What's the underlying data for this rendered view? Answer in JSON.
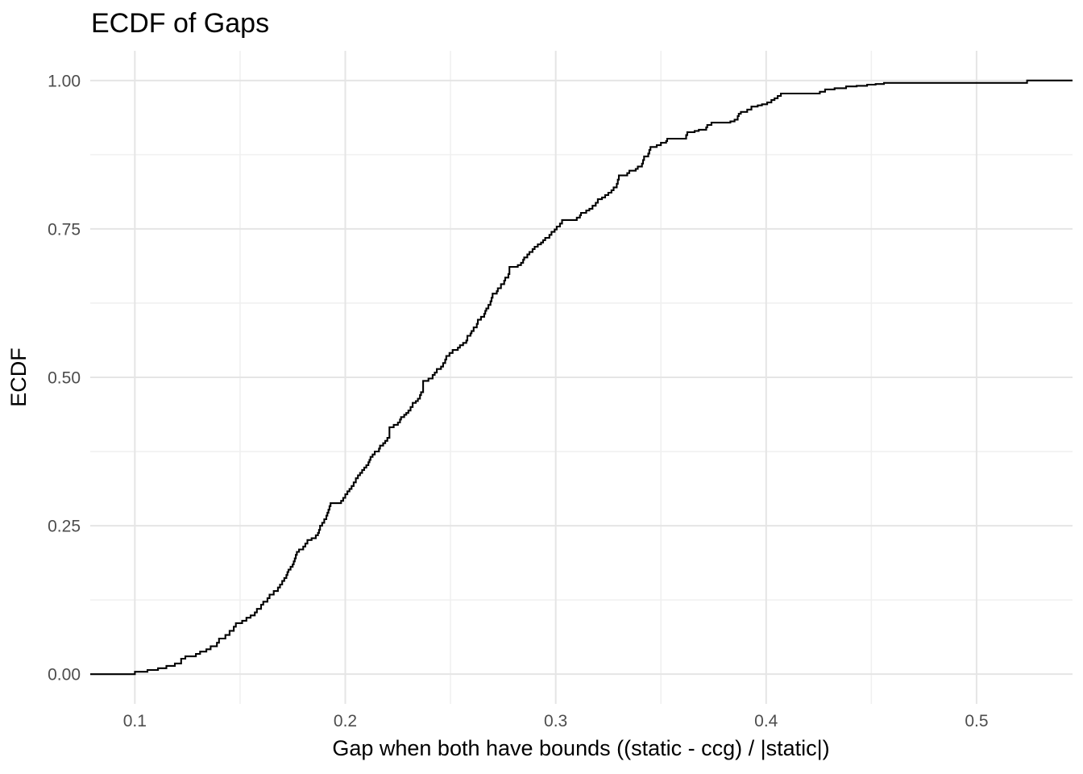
{
  "title": "ECDF of Gaps",
  "chart_data": {
    "type": "line",
    "interpolation": "step-after",
    "title": "ECDF of Gaps",
    "xlabel": "Gap when both have bounds ((static - ccg) / |static|)",
    "ylabel": "ECDF",
    "legend_position": "none",
    "grid": true,
    "x_domain": [
      0.0788,
      0.5456
    ],
    "y_domain": [
      -0.05,
      1.05
    ],
    "x_ticks": {
      "major": [
        0.1,
        0.2,
        0.3,
        0.4,
        0.5
      ],
      "labels": [
        "0.1",
        "0.2",
        "0.3",
        "0.4",
        "0.5"
      ],
      "minor": [
        0.15,
        0.25,
        0.35,
        0.45
      ]
    },
    "y_ticks": {
      "major": [
        0.0,
        0.25,
        0.5,
        0.75,
        1.0
      ],
      "labels": [
        "0.00",
        "0.25",
        "0.50",
        "0.75",
        "1.00"
      ],
      "minor": [
        0.125,
        0.375,
        0.625,
        0.875
      ]
    },
    "colors": {
      "line": "#000000",
      "grid_major": "#e5e5e5",
      "grid_minor": "#f0f0f0",
      "tick_text": "#4d4d4d",
      "title_text": "#000000",
      "background": "#ffffff"
    },
    "series": [
      {
        "name": "ecdf",
        "points": [
          [
            0.0788,
            0.0
          ],
          [
            0.1,
            0.004
          ],
          [
            0.106,
            0.007
          ],
          [
            0.111,
            0.01
          ],
          [
            0.115,
            0.014
          ],
          [
            0.119,
            0.018
          ],
          [
            0.122,
            0.026
          ],
          [
            0.124,
            0.03
          ],
          [
            0.129,
            0.034
          ],
          [
            0.131,
            0.038
          ],
          [
            0.134,
            0.042
          ],
          [
            0.136,
            0.047
          ],
          [
            0.139,
            0.053
          ],
          [
            0.14,
            0.06
          ],
          [
            0.143,
            0.066
          ],
          [
            0.145,
            0.073
          ],
          [
            0.147,
            0.08
          ],
          [
            0.148,
            0.086
          ],
          [
            0.151,
            0.09
          ],
          [
            0.153,
            0.095
          ],
          [
            0.155,
            0.099
          ],
          [
            0.157,
            0.104
          ],
          [
            0.158,
            0.11
          ],
          [
            0.16,
            0.117
          ],
          [
            0.161,
            0.122
          ],
          [
            0.163,
            0.128
          ],
          [
            0.164,
            0.134
          ],
          [
            0.166,
            0.14
          ],
          [
            0.168,
            0.146
          ],
          [
            0.169,
            0.151
          ],
          [
            0.17,
            0.157
          ],
          [
            0.171,
            0.162
          ],
          [
            0.172,
            0.167
          ],
          [
            0.1725,
            0.172
          ],
          [
            0.173,
            0.176
          ],
          [
            0.174,
            0.181
          ],
          [
            0.175,
            0.185
          ],
          [
            0.1755,
            0.19
          ],
          [
            0.176,
            0.195
          ],
          [
            0.1765,
            0.201
          ],
          [
            0.177,
            0.206
          ],
          [
            0.178,
            0.21
          ],
          [
            0.18,
            0.215
          ],
          [
            0.181,
            0.22
          ],
          [
            0.182,
            0.226
          ],
          [
            0.184,
            0.229
          ],
          [
            0.186,
            0.234
          ],
          [
            0.187,
            0.238
          ],
          [
            0.1875,
            0.243
          ],
          [
            0.188,
            0.25
          ],
          [
            0.189,
            0.255
          ],
          [
            0.19,
            0.261
          ],
          [
            0.191,
            0.267
          ],
          [
            0.1915,
            0.272
          ],
          [
            0.192,
            0.277
          ],
          [
            0.1925,
            0.283
          ],
          [
            0.193,
            0.288
          ],
          [
            0.198,
            0.292
          ],
          [
            0.199,
            0.297
          ],
          [
            0.2,
            0.303
          ],
          [
            0.201,
            0.308
          ],
          [
            0.202,
            0.312
          ],
          [
            0.203,
            0.317
          ],
          [
            0.204,
            0.323
          ],
          [
            0.205,
            0.33
          ],
          [
            0.206,
            0.335
          ],
          [
            0.207,
            0.339
          ],
          [
            0.208,
            0.344
          ],
          [
            0.209,
            0.348
          ],
          [
            0.21,
            0.352
          ],
          [
            0.211,
            0.357
          ],
          [
            0.2115,
            0.361
          ],
          [
            0.212,
            0.366
          ],
          [
            0.213,
            0.37
          ],
          [
            0.214,
            0.375
          ],
          [
            0.216,
            0.38
          ],
          [
            0.2165,
            0.385
          ],
          [
            0.218,
            0.389
          ],
          [
            0.219,
            0.393
          ],
          [
            0.22,
            0.398
          ],
          [
            0.221,
            0.416
          ],
          [
            0.223,
            0.42
          ],
          [
            0.225,
            0.424
          ],
          [
            0.226,
            0.429
          ],
          [
            0.2265,
            0.433
          ],
          [
            0.228,
            0.437
          ],
          [
            0.229,
            0.44
          ],
          [
            0.23,
            0.444
          ],
          [
            0.231,
            0.45
          ],
          [
            0.232,
            0.457
          ],
          [
            0.2335,
            0.46
          ],
          [
            0.2345,
            0.464
          ],
          [
            0.2355,
            0.47
          ],
          [
            0.236,
            0.475
          ],
          [
            0.237,
            0.494
          ],
          [
            0.2395,
            0.498
          ],
          [
            0.2415,
            0.504
          ],
          [
            0.2425,
            0.508
          ],
          [
            0.2435,
            0.514
          ],
          [
            0.2455,
            0.518
          ],
          [
            0.2465,
            0.524
          ],
          [
            0.2475,
            0.53
          ],
          [
            0.248,
            0.536
          ],
          [
            0.2495,
            0.541
          ],
          [
            0.251,
            0.546
          ],
          [
            0.2535,
            0.55
          ],
          [
            0.2545,
            0.554
          ],
          [
            0.256,
            0.558
          ],
          [
            0.2575,
            0.562
          ],
          [
            0.258,
            0.57
          ],
          [
            0.2595,
            0.574
          ],
          [
            0.26,
            0.578
          ],
          [
            0.261,
            0.584
          ],
          [
            0.2625,
            0.59
          ],
          [
            0.263,
            0.597
          ],
          [
            0.2645,
            0.602
          ],
          [
            0.266,
            0.607
          ],
          [
            0.2665,
            0.612
          ],
          [
            0.267,
            0.616
          ],
          [
            0.268,
            0.622
          ],
          [
            0.269,
            0.628
          ],
          [
            0.2695,
            0.634
          ],
          [
            0.27,
            0.641
          ],
          [
            0.272,
            0.645
          ],
          [
            0.2725,
            0.65
          ],
          [
            0.274,
            0.657
          ],
          [
            0.2755,
            0.663
          ],
          [
            0.276,
            0.668
          ],
          [
            0.2775,
            0.674
          ],
          [
            0.278,
            0.686
          ],
          [
            0.282,
            0.689
          ],
          [
            0.2835,
            0.693
          ],
          [
            0.2845,
            0.698
          ],
          [
            0.285,
            0.702
          ],
          [
            0.2865,
            0.707
          ],
          [
            0.2875,
            0.711
          ],
          [
            0.289,
            0.716
          ],
          [
            0.29,
            0.72
          ],
          [
            0.2915,
            0.724
          ],
          [
            0.293,
            0.727
          ],
          [
            0.294,
            0.731
          ],
          [
            0.295,
            0.735
          ],
          [
            0.297,
            0.74
          ],
          [
            0.298,
            0.745
          ],
          [
            0.2995,
            0.749
          ],
          [
            0.3005,
            0.754
          ],
          [
            0.302,
            0.759
          ],
          [
            0.303,
            0.765
          ],
          [
            0.31,
            0.769
          ],
          [
            0.3115,
            0.773
          ],
          [
            0.312,
            0.777
          ],
          [
            0.3145,
            0.781
          ],
          [
            0.316,
            0.784
          ],
          [
            0.3175,
            0.789
          ],
          [
            0.319,
            0.794
          ],
          [
            0.32,
            0.8
          ],
          [
            0.322,
            0.803
          ],
          [
            0.3235,
            0.807
          ],
          [
            0.325,
            0.811
          ],
          [
            0.3265,
            0.815
          ],
          [
            0.3275,
            0.82
          ],
          [
            0.329,
            0.826
          ],
          [
            0.3295,
            0.833
          ],
          [
            0.33,
            0.84
          ],
          [
            0.334,
            0.844
          ],
          [
            0.335,
            0.848
          ],
          [
            0.338,
            0.851
          ],
          [
            0.339,
            0.855
          ],
          [
            0.341,
            0.86
          ],
          [
            0.3415,
            0.866
          ],
          [
            0.342,
            0.872
          ],
          [
            0.344,
            0.877
          ],
          [
            0.3445,
            0.883
          ],
          [
            0.345,
            0.888
          ],
          [
            0.348,
            0.891
          ],
          [
            0.35,
            0.895
          ],
          [
            0.3525,
            0.898
          ],
          [
            0.353,
            0.902
          ],
          [
            0.362,
            0.908
          ],
          [
            0.3625,
            0.913
          ],
          [
            0.366,
            0.915
          ],
          [
            0.368,
            0.917
          ],
          [
            0.3715,
            0.921
          ],
          [
            0.372,
            0.925
          ],
          [
            0.374,
            0.929
          ],
          [
            0.383,
            0.931
          ],
          [
            0.385,
            0.934
          ],
          [
            0.3865,
            0.94
          ],
          [
            0.387,
            0.944
          ],
          [
            0.388,
            0.947
          ],
          [
            0.391,
            0.951
          ],
          [
            0.393,
            0.956
          ],
          [
            0.396,
            0.958
          ],
          [
            0.398,
            0.96
          ],
          [
            0.4005,
            0.963
          ],
          [
            0.4025,
            0.967
          ],
          [
            0.404,
            0.97
          ],
          [
            0.4055,
            0.974
          ],
          [
            0.407,
            0.978
          ],
          [
            0.4255,
            0.981
          ],
          [
            0.428,
            0.985
          ],
          [
            0.4325,
            0.987
          ],
          [
            0.438,
            0.99
          ],
          [
            0.443,
            0.991
          ],
          [
            0.448,
            0.993
          ],
          [
            0.452,
            0.994
          ],
          [
            0.456,
            0.996
          ],
          [
            0.524,
            1.0
          ]
        ]
      }
    ]
  }
}
